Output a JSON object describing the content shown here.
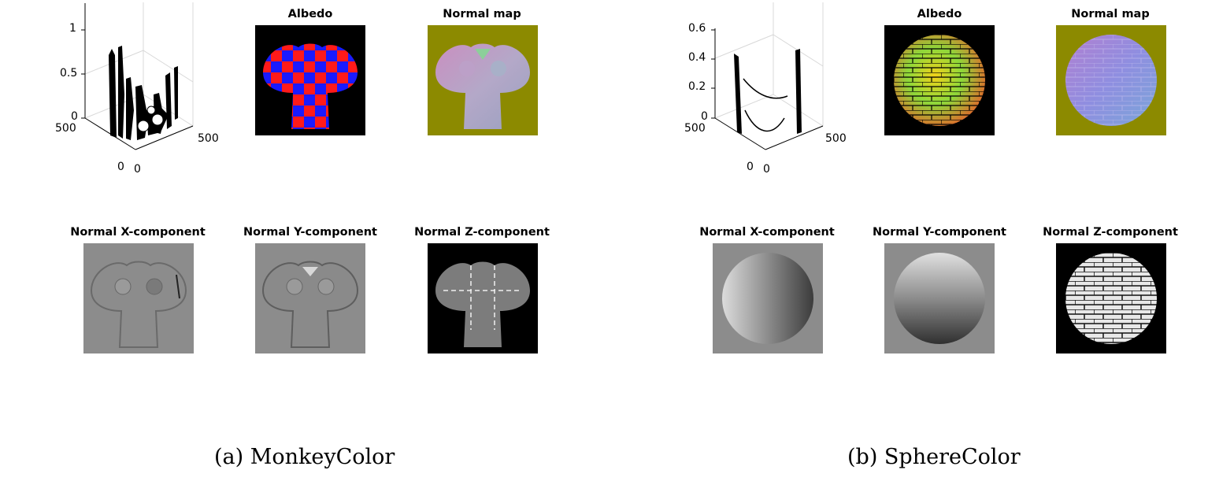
{
  "figure": {
    "a": {
      "caption": "(a) MonkeyColor",
      "plot3d": {
        "z_ticks": [
          "1",
          "0.5",
          "0"
        ],
        "left_ticks": [
          "500",
          "0"
        ],
        "right_ticks": [
          "500",
          "0"
        ]
      },
      "titles": {
        "albedo": "Albedo",
        "normal_map": "Normal map",
        "normal_x": "Normal X-component",
        "normal_y": "Normal Y-component",
        "normal_z": "Normal Z-component"
      }
    },
    "b": {
      "caption": "(b) SphereColor",
      "plot3d": {
        "z_ticks": [
          "0.6",
          "0.4",
          "0.2",
          "0"
        ],
        "left_ticks": [
          "500",
          "0"
        ],
        "right_ticks": [
          "500",
          "0"
        ]
      },
      "titles": {
        "albedo": "Albedo",
        "normal_map": "Normal map",
        "normal_x": "Normal X-component",
        "normal_y": "Normal Y-component",
        "normal_z": "Normal Z-component"
      }
    }
  },
  "colors": {
    "albedo_red": "#ff1a1a",
    "albedo_blue": "#1a1aff",
    "normal_map_bg": "#8c8a00",
    "gray_bg": "#8c8c8c",
    "black_bg": "#000000"
  }
}
